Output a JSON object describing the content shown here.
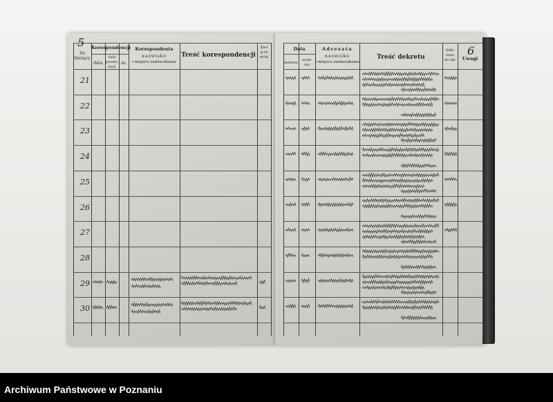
{
  "left_page": {
    "page_number": "5",
    "headers": {
      "no": "Nr bieżący",
      "korespondencji": "Korespondencji",
      "data": "data",
      "data_prezentacji": "data prezen-tacji",
      "nr": "nr.",
      "korespondenta": "Korespondenta",
      "nazwisko": "nazwisko",
      "miejsce": "i miejsce zamieszkania",
      "tresc": "Treść korespondencji",
      "zalaczniki": "Za-łą-czni-ki"
    },
    "rows": [
      "21",
      "22",
      "23",
      "24",
      "25",
      "26",
      "27",
      "28",
      "29",
      "30"
    ]
  },
  "right_page": {
    "page_number": "6",
    "headers": {
      "data": "Data",
      "dekretu": "dekretu",
      "wydania": "wyda-nia",
      "adresata": "Adresata",
      "nazwisko": "nazwisko",
      "miejsce": "i miejsce zamieszkania",
      "tresc": "Treść dekretu",
      "odlozono": "Odło-żono do akt",
      "uwagi": "Uwagi"
    }
  },
  "footer": {
    "archive_name": "Archiwum Państwowe w Poznaniu"
  },
  "colors": {
    "banner": "#000000",
    "paper": "#d4d4cf",
    "ink": "#2a2a2a"
  }
}
